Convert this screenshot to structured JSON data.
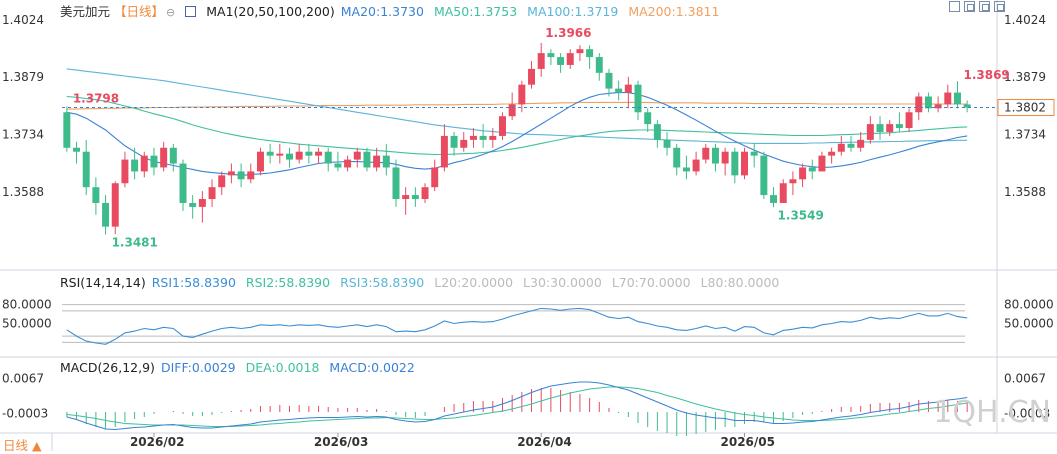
{
  "header": {
    "title": "美元加元",
    "period": "【日线】",
    "settings_icon": "⊖",
    "ma_label": "MA1(20,50,100,200)",
    "ma20": "MA20:1.3730",
    "ma50": "MA50:1.3753",
    "ma100": "MA100:1.3719",
    "ma200": "MA200:1.3811"
  },
  "rsi_header": {
    "name": "RSI(14,14,14)",
    "rsi1": "RSI1:58.8390",
    "rsi2": "RSI2:58.8390",
    "rsi3": "RSI3:58.8390",
    "l20": "L20:20.0000",
    "l30": "L30:30.0000",
    "l70": "L70:70.0000",
    "l80": "L80:80.0000"
  },
  "macd_header": {
    "name": "MACD(26,12,9)",
    "diff": "DIFF:0.0029",
    "dea": "DEA:0.0018",
    "macd": "MACD:0.0022"
  },
  "period_tab": "日线 ▲",
  "watermark": "1QH.CN",
  "colors": {
    "up": "#e84a5f",
    "down": "#3dbb8a",
    "ma20": "#3a82d6",
    "ma50": "#3fc0a0",
    "ma100": "#5bb5d8",
    "ma200": "#f0a060",
    "rsi": "#3a8fd6",
    "price_line": "#3a82d6"
  },
  "chart_data": {
    "type": "candlestick",
    "ylim": [
      1.339,
      1.4024
    ],
    "y_ticks": [
      "1.4024",
      "1.3879",
      "1.3734",
      "1.3588"
    ],
    "x_ticks": [
      "2026/02",
      "2026/03",
      "2026/04",
      "2026/05"
    ],
    "x_tick_index": [
      9,
      28,
      49,
      70
    ],
    "current_price": "1.3802",
    "annotations": {
      "high": "1.3966",
      "low": "1.3481",
      "low2": "1.3549",
      "recent_high": "1.3869",
      "left_level": "1.3798"
    },
    "candles": [
      [
        1.379,
        1.37,
        1.3805,
        1.369
      ],
      [
        1.37,
        1.369,
        1.3715,
        1.366
      ],
      [
        1.369,
        1.36,
        1.372,
        1.358
      ],
      [
        1.36,
        1.356,
        1.3625,
        1.353
      ],
      [
        1.356,
        1.35,
        1.358,
        1.348
      ],
      [
        1.35,
        1.361,
        1.3615,
        1.3481
      ],
      [
        1.361,
        1.367,
        1.369,
        1.36
      ],
      [
        1.367,
        1.364,
        1.37,
        1.362
      ],
      [
        1.364,
        1.368,
        1.369,
        1.3625
      ],
      [
        1.368,
        1.365,
        1.37,
        1.363
      ],
      [
        1.365,
        1.37,
        1.3715,
        1.364
      ],
      [
        1.37,
        1.366,
        1.371,
        1.364
      ],
      [
        1.366,
        1.356,
        1.367,
        1.354
      ],
      [
        1.356,
        1.355,
        1.358,
        1.352
      ],
      [
        1.355,
        1.357,
        1.359,
        1.351
      ],
      [
        1.357,
        1.36,
        1.362,
        1.355
      ],
      [
        1.36,
        1.363,
        1.364,
        1.358
      ],
      [
        1.363,
        1.364,
        1.366,
        1.361
      ],
      [
        1.364,
        1.362,
        1.366,
        1.36
      ],
      [
        1.362,
        1.364,
        1.366,
        1.361
      ],
      [
        1.364,
        1.369,
        1.37,
        1.363
      ],
      [
        1.369,
        1.368,
        1.371,
        1.366
      ],
      [
        1.368,
        1.3685,
        1.371,
        1.366
      ],
      [
        1.3685,
        1.367,
        1.37,
        1.365
      ],
      [
        1.367,
        1.369,
        1.371,
        1.366
      ],
      [
        1.369,
        1.368,
        1.371,
        1.366
      ],
      [
        1.368,
        1.369,
        1.37,
        1.366
      ],
      [
        1.369,
        1.366,
        1.37,
        1.364
      ],
      [
        1.366,
        1.365,
        1.369,
        1.364
      ],
      [
        1.365,
        1.367,
        1.368,
        1.364
      ],
      [
        1.367,
        1.369,
        1.37,
        1.365
      ],
      [
        1.369,
        1.365,
        1.37,
        1.364
      ],
      [
        1.365,
        1.368,
        1.37,
        1.364
      ],
      [
        1.368,
        1.365,
        1.371,
        1.363
      ],
      [
        1.365,
        1.357,
        1.367,
        1.355
      ],
      [
        1.357,
        1.358,
        1.36,
        1.353
      ],
      [
        1.358,
        1.357,
        1.36,
        1.355
      ],
      [
        1.357,
        1.36,
        1.361,
        1.356
      ],
      [
        1.36,
        1.365,
        1.367,
        1.359
      ],
      [
        1.365,
        1.373,
        1.376,
        1.364
      ],
      [
        1.373,
        1.37,
        1.374,
        1.368
      ],
      [
        1.37,
        1.372,
        1.374,
        1.369
      ],
      [
        1.372,
        1.373,
        1.375,
        1.37
      ],
      [
        1.373,
        1.372,
        1.376,
        1.37
      ],
      [
        1.372,
        1.373,
        1.375,
        1.37
      ],
      [
        1.373,
        1.378,
        1.379,
        1.372
      ],
      [
        1.378,
        1.381,
        1.384,
        1.377
      ],
      [
        1.381,
        1.386,
        1.387,
        1.379
      ],
      [
        1.386,
        1.39,
        1.392,
        1.385
      ],
      [
        1.39,
        1.394,
        1.3966,
        1.388
      ],
      [
        1.394,
        1.393,
        1.395,
        1.391
      ],
      [
        1.393,
        1.391,
        1.394,
        1.389
      ],
      [
        1.391,
        1.394,
        1.395,
        1.39
      ],
      [
        1.394,
        1.395,
        1.396,
        1.392
      ],
      [
        1.395,
        1.393,
        1.396,
        1.39
      ],
      [
        1.393,
        1.389,
        1.394,
        1.387
      ],
      [
        1.389,
        1.385,
        1.39,
        1.383
      ],
      [
        1.385,
        1.384,
        1.387,
        1.382
      ],
      [
        1.384,
        1.386,
        1.388,
        1.38
      ],
      [
        1.386,
        1.379,
        1.387,
        1.377
      ],
      [
        1.379,
        1.376,
        1.38,
        1.374
      ],
      [
        1.376,
        1.372,
        1.377,
        1.37
      ],
      [
        1.372,
        1.37,
        1.374,
        1.368
      ],
      [
        1.37,
        1.365,
        1.371,
        1.363
      ],
      [
        1.365,
        1.364,
        1.368,
        1.362
      ],
      [
        1.364,
        1.367,
        1.369,
        1.363
      ],
      [
        1.367,
        1.37,
        1.371,
        1.366
      ],
      [
        1.37,
        1.366,
        1.371,
        1.364
      ],
      [
        1.366,
        1.369,
        1.37,
        1.363
      ],
      [
        1.369,
        1.363,
        1.37,
        1.361
      ],
      [
        1.363,
        1.369,
        1.37,
        1.362
      ],
      [
        1.369,
        1.368,
        1.371,
        1.365
      ],
      [
        1.368,
        1.358,
        1.369,
        1.357
      ],
      [
        1.358,
        1.356,
        1.36,
        1.3549
      ],
      [
        1.356,
        1.361,
        1.362,
        1.356
      ],
      [
        1.361,
        1.362,
        1.364,
        1.358
      ],
      [
        1.362,
        1.365,
        1.366,
        1.36
      ],
      [
        1.365,
        1.364,
        1.367,
        1.362
      ],
      [
        1.364,
        1.368,
        1.369,
        1.364
      ],
      [
        1.368,
        1.369,
        1.37,
        1.366
      ],
      [
        1.369,
        1.371,
        1.373,
        1.368
      ],
      [
        1.371,
        1.37,
        1.373,
        1.369
      ],
      [
        1.37,
        1.372,
        1.374,
        1.369
      ],
      [
        1.372,
        1.376,
        1.378,
        1.371
      ],
      [
        1.376,
        1.374,
        1.378,
        1.372
      ],
      [
        1.374,
        1.376,
        1.377,
        1.373
      ],
      [
        1.376,
        1.375,
        1.379,
        1.374
      ],
      [
        1.375,
        1.379,
        1.38,
        1.374
      ],
      [
        1.379,
        1.383,
        1.384,
        1.377
      ],
      [
        1.383,
        1.38,
        1.384,
        1.379
      ],
      [
        1.38,
        1.381,
        1.383,
        1.379
      ],
      [
        1.381,
        1.384,
        1.386,
        1.38
      ],
      [
        1.384,
        1.381,
        1.3869,
        1.38
      ],
      [
        1.381,
        1.3802,
        1.382,
        1.379
      ]
    ],
    "ma20": [
      1.379,
      1.3785,
      1.3775,
      1.376,
      1.3745,
      1.3725,
      1.3705,
      1.369,
      1.3675,
      1.3665,
      1.366,
      1.3655,
      1.365,
      1.3645,
      1.364,
      1.3637,
      1.3635,
      1.3633,
      1.363,
      1.3632,
      1.3634,
      1.3636,
      1.364,
      1.3644,
      1.365,
      1.3655,
      1.366,
      1.3663,
      1.3664,
      1.3665,
      1.3665,
      1.3664,
      1.3663,
      1.3662,
      1.3658,
      1.3652,
      1.3648,
      1.3646,
      1.3648,
      1.3655,
      1.3662,
      1.3668,
      1.3675,
      1.3683,
      1.3692,
      1.3703,
      1.3716,
      1.373,
      1.3745,
      1.376,
      1.3775,
      1.379,
      1.3805,
      1.3818,
      1.3828,
      1.3835,
      1.3838,
      1.384,
      1.384,
      1.3835,
      1.3828,
      1.3818,
      1.3808,
      1.3796,
      1.3783,
      1.377,
      1.3756,
      1.3742,
      1.3729,
      1.3717,
      1.3705,
      1.3694,
      1.3684,
      1.3675,
      1.3666,
      1.366,
      1.3655,
      1.3652,
      1.365,
      1.3651,
      1.3654,
      1.3658,
      1.3663,
      1.367,
      1.3676,
      1.3682,
      1.3689,
      1.3696,
      1.3704,
      1.371,
      1.3715,
      1.372,
      1.3726,
      1.373
    ],
    "ma50": [
      1.383,
      1.3828,
      1.3825,
      1.3822,
      1.3818,
      1.3812,
      1.3806,
      1.38,
      1.3793,
      1.3786,
      1.378,
      1.3774,
      1.3766,
      1.3758,
      1.3751,
      1.3745,
      1.3739,
      1.3734,
      1.3729,
      1.3725,
      1.3721,
      1.3718,
      1.3715,
      1.3712,
      1.3709,
      1.3707,
      1.3705,
      1.3703,
      1.3701,
      1.3699,
      1.3697,
      1.3695,
      1.3693,
      1.3691,
      1.3689,
      1.3687,
      1.3685,
      1.3684,
      1.3683,
      1.3683,
      1.3684,
      1.3685,
      1.3686,
      1.3688,
      1.369,
      1.3693,
      1.3697,
      1.3701,
      1.3706,
      1.3711,
      1.3716,
      1.3721,
      1.3726,
      1.373,
      1.3734,
      1.3738,
      1.3741,
      1.3743,
      1.3744,
      1.3745,
      1.3745,
      1.3745,
      1.3744,
      1.3743,
      1.3742,
      1.3741,
      1.374,
      1.3739,
      1.3738,
      1.3737,
      1.3736,
      1.3735,
      1.3734,
      1.3733,
      1.3732,
      1.3731,
      1.3731,
      1.3731,
      1.3731,
      1.3732,
      1.3733,
      1.3734,
      1.3735,
      1.3736,
      1.3737,
      1.3738,
      1.374,
      1.3742,
      1.3744,
      1.3746,
      1.3748,
      1.375,
      1.3752,
      1.3753
    ],
    "ma100": [
      1.39,
      1.3897,
      1.3894,
      1.3891,
      1.3888,
      1.3885,
      1.3882,
      1.3879,
      1.3876,
      1.3873,
      1.387,
      1.3866,
      1.3862,
      1.3858,
      1.3854,
      1.385,
      1.3846,
      1.3842,
      1.3838,
      1.3834,
      1.383,
      1.3826,
      1.3822,
      1.3818,
      1.3814,
      1.381,
      1.3806,
      1.3802,
      1.3798,
      1.3794,
      1.379,
      1.3786,
      1.3782,
      1.3778,
      1.3774,
      1.377,
      1.3766,
      1.3762,
      1.3758,
      1.3755,
      1.3752,
      1.3749,
      1.3746,
      1.3743,
      1.3741,
      1.3739,
      1.3737,
      1.3735,
      1.3734,
      1.3733,
      1.3732,
      1.3731,
      1.373,
      1.3729,
      1.3728,
      1.3727,
      1.3726,
      1.3725,
      1.3724,
      1.3723,
      1.3722,
      1.3721,
      1.372,
      1.3719,
      1.3718,
      1.3717,
      1.3716,
      1.3715,
      1.3714,
      1.3713,
      1.3712,
      1.3711,
      1.3711,
      1.3711,
      1.3711,
      1.3711,
      1.3711,
      1.3712,
      1.3712,
      1.3713,
      1.3713,
      1.3714,
      1.3714,
      1.3715,
      1.3715,
      1.3716,
      1.3716,
      1.3717,
      1.3717,
      1.3718,
      1.3718,
      1.3718,
      1.3719,
      1.3719
    ],
    "ma200": [
      1.3798,
      1.3798,
      1.3799,
      1.3799,
      1.38,
      1.38,
      1.3801,
      1.3801,
      1.3801,
      1.3802,
      1.3802,
      1.3802,
      1.3803,
      1.3803,
      1.3803,
      1.3804,
      1.3804,
      1.3804,
      1.3805,
      1.3805,
      1.3805,
      1.3805,
      1.3806,
      1.3806,
      1.3806,
      1.3806,
      1.3807,
      1.3807,
      1.3807,
      1.3807,
      1.3807,
      1.3808,
      1.3808,
      1.3808,
      1.3808,
      1.3808,
      1.3809,
      1.3809,
      1.3809,
      1.3809,
      1.3809,
      1.381,
      1.381,
      1.381,
      1.381,
      1.3811,
      1.3811,
      1.3812,
      1.3812,
      1.3813,
      1.3813,
      1.3814,
      1.3814,
      1.3815,
      1.3815,
      1.3815,
      1.3815,
      1.3815,
      1.3815,
      1.3815,
      1.3815,
      1.3814,
      1.3814,
      1.3814,
      1.3814,
      1.3814,
      1.3813,
      1.3813,
      1.3813,
      1.3813,
      1.3813,
      1.3812,
      1.3812,
      1.3812,
      1.3812,
      1.3812,
      1.3812,
      1.3812,
      1.3811,
      1.3811,
      1.3811,
      1.3811,
      1.3811,
      1.3811,
      1.3811,
      1.3811,
      1.3811,
      1.3811,
      1.3811,
      1.3811,
      1.3811,
      1.3811,
      1.3811,
      1.3811
    ],
    "rsi": {
      "ylim": [
        0,
        100
      ],
      "y_ticks": [
        "80.0000",
        "50.0000"
      ],
      "levels": [
        80,
        70,
        30,
        20
      ],
      "values": [
        40,
        30,
        22,
        19,
        17,
        25,
        35,
        38,
        42,
        40,
        44,
        42,
        30,
        28,
        33,
        38,
        42,
        44,
        42,
        44,
        48,
        47,
        48,
        46,
        48,
        47,
        48,
        45,
        44,
        46,
        48,
        45,
        48,
        45,
        37,
        38,
        37,
        40,
        46,
        54,
        50,
        52,
        53,
        52,
        53,
        57,
        62,
        66,
        70,
        74,
        73,
        71,
        73,
        74,
        72,
        66,
        60,
        58,
        60,
        53,
        50,
        46,
        44,
        40,
        39,
        42,
        46,
        42,
        44,
        38,
        45,
        44,
        35,
        32,
        39,
        41,
        44,
        43,
        48,
        50,
        53,
        52,
        55,
        60,
        57,
        59,
        58,
        62,
        66,
        62,
        62,
        66,
        61,
        58.839
      ]
    },
    "macd": {
      "y_ticks": [
        "0.0067",
        "-0.0003"
      ],
      "ylim": [
        -0.004,
        0.008
      ],
      "diff": [
        -0.001,
        -0.0015,
        -0.0022,
        -0.0028,
        -0.0034,
        -0.0035,
        -0.0033,
        -0.0031,
        -0.003,
        -0.0028,
        -0.0026,
        -0.0025,
        -0.0028,
        -0.0031,
        -0.0032,
        -0.0032,
        -0.003,
        -0.0028,
        -0.0026,
        -0.0024,
        -0.002,
        -0.0018,
        -0.0016,
        -0.0015,
        -0.0013,
        -0.0012,
        -0.0011,
        -0.0011,
        -0.0011,
        -0.001,
        -0.0009,
        -0.001,
        -0.0009,
        -0.001,
        -0.0015,
        -0.0018,
        -0.002,
        -0.0019,
        -0.0015,
        -0.0008,
        -0.0004,
        0.0,
        0.0004,
        0.0007,
        0.001,
        0.0016,
        0.0023,
        0.0031,
        0.0039,
        0.0046,
        0.0052,
        0.0055,
        0.0058,
        0.006,
        0.006,
        0.0058,
        0.0054,
        0.0049,
        0.0044,
        0.0036,
        0.0028,
        0.002,
        0.0012,
        0.0004,
        -0.0002,
        -0.0006,
        -0.0009,
        -0.0012,
        -0.0013,
        -0.0017,
        -0.0017,
        -0.0017,
        -0.002,
        -0.0023,
        -0.0023,
        -0.0022,
        -0.002,
        -0.0019,
        -0.0016,
        -0.0013,
        -0.001,
        -0.0008,
        -0.0005,
        -0.0001,
        0.0002,
        0.0005,
        0.0007,
        0.0011,
        0.0016,
        0.0018,
        0.002,
        0.0024,
        0.0026,
        0.0029
      ],
      "dea": [
        -0.0005,
        -0.0007,
        -0.001,
        -0.0013,
        -0.0017,
        -0.002,
        -0.0023,
        -0.0024,
        -0.0025,
        -0.0026,
        -0.0026,
        -0.0026,
        -0.0026,
        -0.0027,
        -0.0028,
        -0.0029,
        -0.0029,
        -0.0029,
        -0.0028,
        -0.0027,
        -0.0026,
        -0.0024,
        -0.0023,
        -0.0021,
        -0.002,
        -0.0018,
        -0.0017,
        -0.0016,
        -0.0015,
        -0.0014,
        -0.0013,
        -0.0012,
        -0.0012,
        -0.0011,
        -0.0012,
        -0.0013,
        -0.0014,
        -0.0015,
        -0.0015,
        -0.0013,
        -0.0012,
        -0.0009,
        -0.0007,
        -0.0004,
        -0.0001,
        0.0002,
        0.0006,
        0.0011,
        0.0016,
        0.0022,
        0.0028,
        0.0033,
        0.0038,
        0.0042,
        0.0046,
        0.0048,
        0.005,
        0.005,
        0.0049,
        0.0047,
        0.0043,
        0.0039,
        0.0033,
        0.0028,
        0.0022,
        0.0016,
        0.0011,
        0.0006,
        0.0002,
        -0.0002,
        -0.0005,
        -0.0007,
        -0.001,
        -0.0012,
        -0.0014,
        -0.0016,
        -0.0017,
        -0.0017,
        -0.0017,
        -0.0016,
        -0.0015,
        -0.0013,
        -0.0011,
        -0.0009,
        -0.0007,
        -0.0004,
        -0.0002,
        0.0001,
        0.0004,
        0.0007,
        0.0009,
        0.0012,
        0.0015,
        0.0018
      ]
    }
  }
}
